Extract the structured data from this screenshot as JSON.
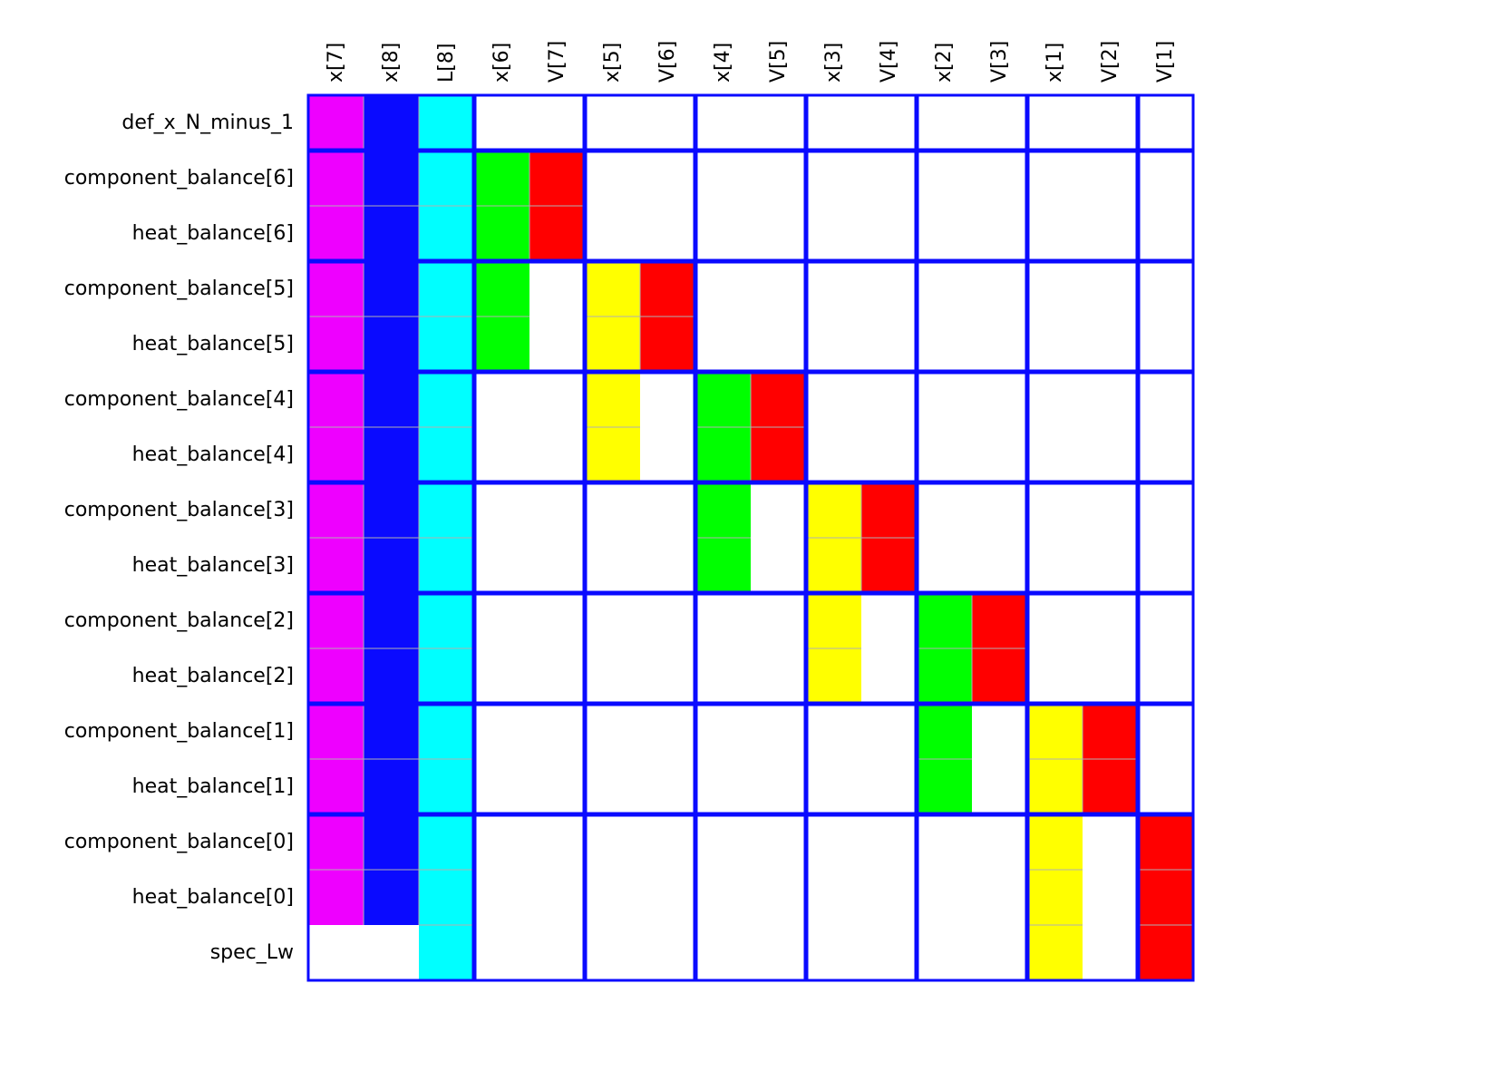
{
  "matrix": {
    "columns": [
      "x[7]",
      "x[8]",
      "L[8]",
      "x[6]",
      "V[7]",
      "x[5]",
      "V[6]",
      "x[4]",
      "V[5]",
      "x[3]",
      "V[4]",
      "x[2]",
      "V[3]",
      "x[1]",
      "V[2]",
      "V[1]"
    ],
    "rows": [
      "def_x_N_minus_1",
      "component_balance[6]",
      "heat_balance[6]",
      "component_balance[5]",
      "heat_balance[5]",
      "component_balance[4]",
      "heat_balance[4]",
      "component_balance[3]",
      "heat_balance[3]",
      "component_balance[2]",
      "heat_balance[2]",
      "component_balance[1]",
      "heat_balance[1]",
      "component_balance[0]",
      "heat_balance[0]",
      "spec_Lw"
    ],
    "colors": {
      "m": "#ee00ff",
      "b": "#0a0aff",
      "c": "#00ffff",
      "g": "#00ff00",
      "r": "#ff0000",
      "y": "#ffff00"
    },
    "cells": [
      "mbc.............",
      "mbcgr...........",
      "mbcgr...........",
      "mbcg.yr.........",
      "mbcg.yr.........",
      "mbc..y.gr.......",
      "mbc..y.gr.......",
      "mbc....g.yr.....",
      "mbc....g.yr.....",
      "mbc......y.gr...",
      "mbc......y.gr...",
      "mbc........g.yr.",
      "mbc........g.yr.",
      "mbc..........y.r",
      "mbc..........y.r",
      "..c..........y.r"
    ],
    "block_col_boundaries": [
      3,
      5,
      7,
      9,
      11,
      13,
      15
    ],
    "block_row_boundaries": [
      1,
      3,
      5,
      7,
      9,
      11,
      13
    ],
    "grid_color": "#0a0aff",
    "thin_line_color": "#b0b0b0"
  }
}
